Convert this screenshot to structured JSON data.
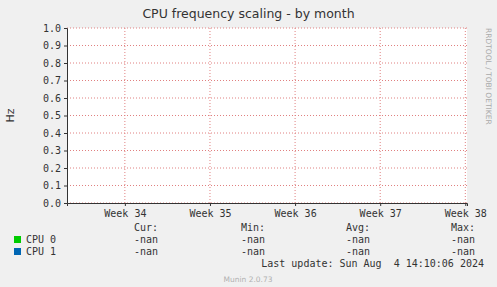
{
  "chart_data": {
    "type": "line",
    "title": "CPU frequency scaling - by month",
    "y_label": "Hz",
    "x": [
      34,
      35,
      36,
      37,
      38
    ],
    "xlim": [
      33.32,
      38.02
    ],
    "xticks": [
      {
        "value": 34,
        "label": "Week 34"
      },
      {
        "value": 35,
        "label": "Week 35"
      },
      {
        "value": 36,
        "label": "Week 36"
      },
      {
        "value": 37,
        "label": "Week 37"
      },
      {
        "value": 38,
        "label": "Week 38"
      }
    ],
    "ylim": [
      0,
      1
    ],
    "yticks": [
      {
        "value": 0,
        "label": "0.0"
      },
      0.1,
      0.2,
      0.3,
      0.4,
      0.5,
      0.6,
      0.7,
      0.8,
      0.9,
      {
        "value": 1,
        "label": "1.0"
      }
    ],
    "grid": true,
    "legend": "bottom",
    "stat_headers": [
      "Cur:",
      "Min:",
      "Avg:",
      "Max:"
    ],
    "series": [
      {
        "name": "CPU 0",
        "color": "#00cc00",
        "values": [
          null,
          null,
          null,
          null,
          null
        ],
        "stats": [
          "-nan",
          "-nan",
          "-nan",
          "-nan"
        ]
      },
      {
        "name": "CPU 1",
        "color": "#0066b3",
        "values": [
          null,
          null,
          null,
          null,
          null
        ],
        "stats": [
          "-nan",
          "-nan",
          "-nan",
          "-nan"
        ]
      }
    ],
    "last_update": "Last update: Sun Aug  4 14:10:06 2024",
    "footer": "Munin 2.0.73",
    "watermark": "RRDTOOL / TOBI OETIKER"
  }
}
